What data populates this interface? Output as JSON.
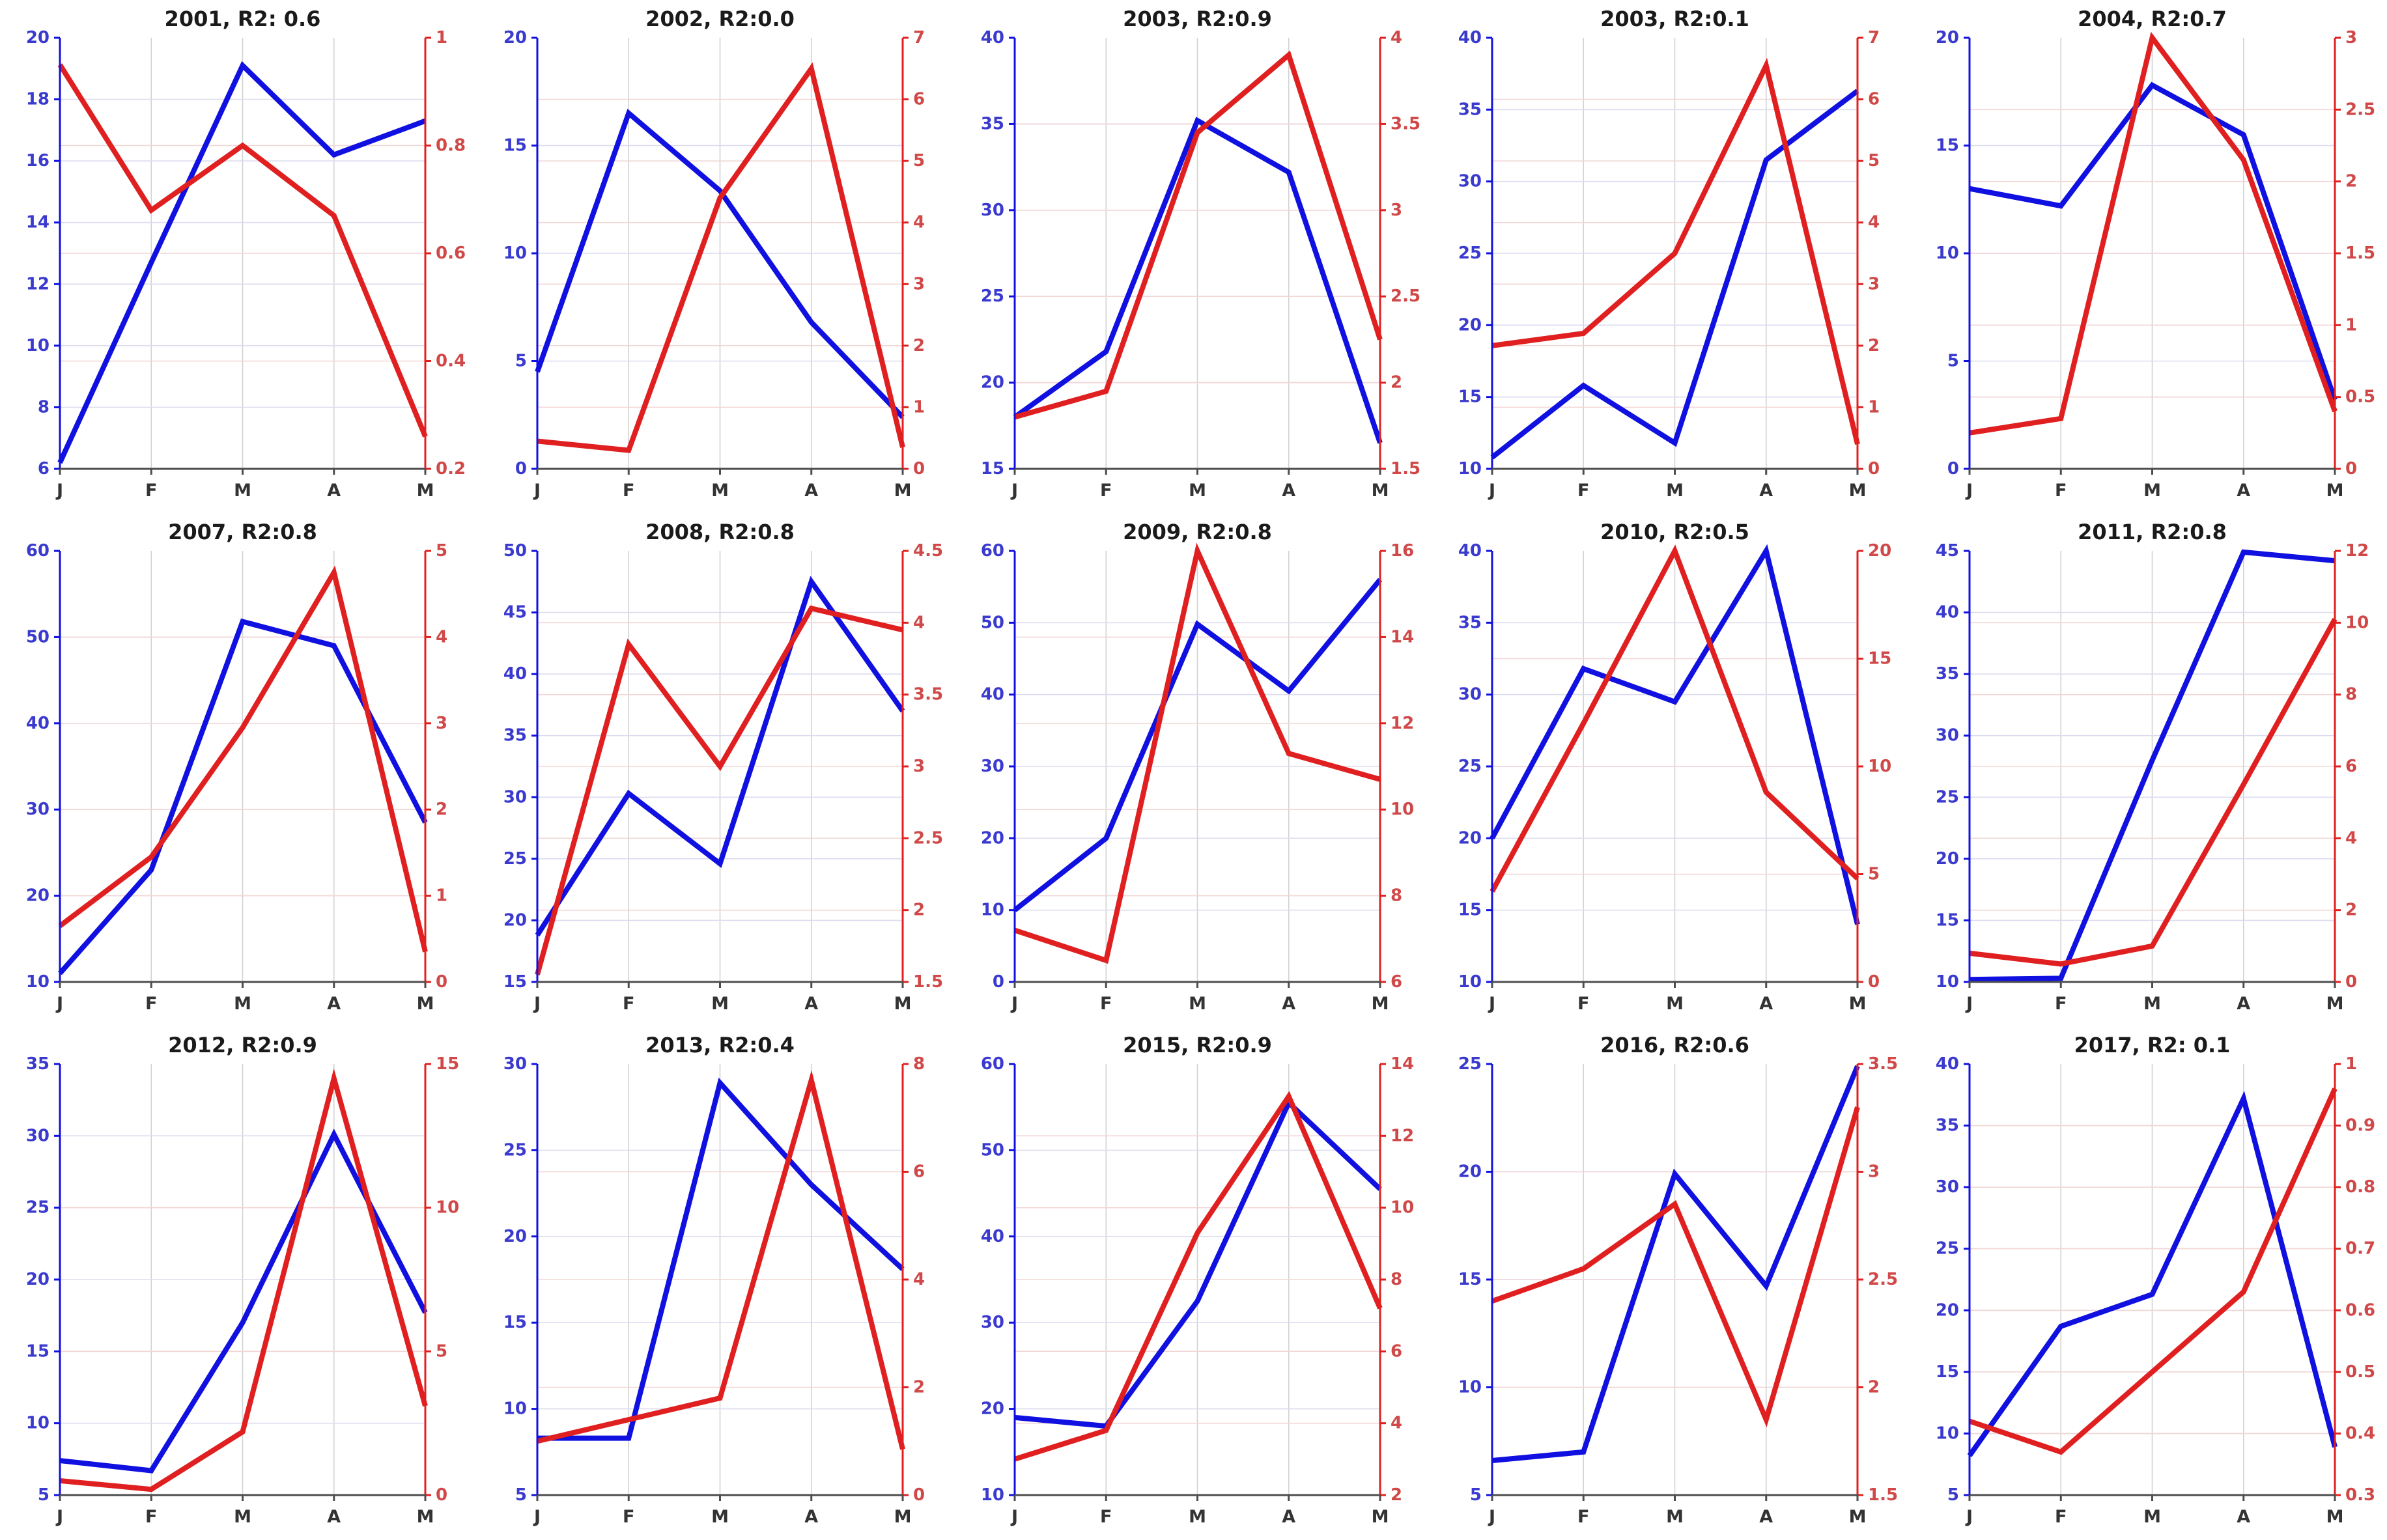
{
  "figure": {
    "background": "#ffffff",
    "rows": 3,
    "cols": 5,
    "x_categories": [
      "J",
      "F",
      "M",
      "A",
      "M"
    ]
  },
  "colors": {
    "blue_line": "#1010e0",
    "red_line": "#e02020",
    "left_tick_label": "#3a3ace",
    "right_tick_label": "#d04848",
    "title": "#1a1a1a",
    "bottom_spine": "#4d4d4d",
    "vertical_grid": "#d2d2d2",
    "left_grid": "#dcdcf0",
    "right_grid": "#f2d6d6"
  },
  "chart_data": [
    {
      "type": "line",
      "title": "2001, R2: 0.6",
      "x": [
        "J",
        "F",
        "M",
        "A",
        "M"
      ],
      "left_ylim": [
        6,
        20
      ],
      "left_ticks": [
        6,
        8,
        10,
        12,
        14,
        16,
        18,
        20
      ],
      "right_ylim": [
        0.2,
        1
      ],
      "right_ticks": [
        0.2,
        0.4,
        0.6,
        0.8,
        1
      ],
      "series": [
        {
          "name": "blue-left",
          "axis": "left",
          "values": [
            6.2,
            12.7,
            19.1,
            16.2,
            17.3
          ]
        },
        {
          "name": "red-right",
          "axis": "right",
          "values": [
            0.95,
            0.68,
            0.8,
            0.67,
            0.26
          ]
        }
      ]
    },
    {
      "type": "line",
      "title": "2002, R2:0.0",
      "x": [
        "J",
        "F",
        "M",
        "A",
        "M"
      ],
      "left_ylim": [
        0,
        20
      ],
      "left_ticks": [
        0,
        5,
        10,
        15,
        20
      ],
      "right_ylim": [
        0,
        7
      ],
      "right_ticks": [
        0,
        1,
        2,
        3,
        4,
        5,
        6,
        7
      ],
      "series": [
        {
          "name": "blue-left",
          "axis": "left",
          "values": [
            4.5,
            16.5,
            12.9,
            6.8,
            2.4
          ]
        },
        {
          "name": "red-right",
          "axis": "right",
          "values": [
            0.45,
            0.3,
            4.4,
            6.5,
            0.35
          ]
        }
      ]
    },
    {
      "type": "line",
      "title": "2003, R2:0.9",
      "x": [
        "J",
        "F",
        "M",
        "A",
        "M"
      ],
      "left_ylim": [
        15,
        40
      ],
      "left_ticks": [
        15,
        20,
        25,
        30,
        35,
        40
      ],
      "right_ylim": [
        1.5,
        4
      ],
      "right_ticks": [
        1.5,
        2,
        2.5,
        3,
        3.5,
        4
      ],
      "series": [
        {
          "name": "blue-left",
          "axis": "left",
          "values": [
            18,
            21.8,
            35.2,
            32.2,
            16.5
          ]
        },
        {
          "name": "red-right",
          "axis": "right",
          "values": [
            1.8,
            1.95,
            3.45,
            3.9,
            2.25
          ]
        }
      ]
    },
    {
      "type": "line",
      "title": "2003, R2:0.1",
      "x": [
        "J",
        "F",
        "M",
        "A",
        "M"
      ],
      "left_ylim": [
        10,
        40
      ],
      "left_ticks": [
        10,
        15,
        20,
        25,
        30,
        35,
        40
      ],
      "right_ylim": [
        0,
        7
      ],
      "right_ticks": [
        0,
        1,
        2,
        3,
        4,
        5,
        6,
        7
      ],
      "series": [
        {
          "name": "blue-left",
          "axis": "left",
          "values": [
            10.8,
            15.8,
            11.8,
            31.5,
            36.3
          ]
        },
        {
          "name": "red-right",
          "axis": "right",
          "values": [
            2.0,
            2.2,
            3.5,
            6.55,
            0.4
          ]
        }
      ]
    },
    {
      "type": "line",
      "title": "2004, R2:0.7",
      "x": [
        "J",
        "F",
        "M",
        "A",
        "M"
      ],
      "left_ylim": [
        0,
        20
      ],
      "left_ticks": [
        0,
        5,
        10,
        15,
        20
      ],
      "right_ylim": [
        0,
        3
      ],
      "right_ticks": [
        0,
        0.5,
        1,
        1.5,
        2,
        2.5,
        3
      ],
      "series": [
        {
          "name": "blue-left",
          "axis": "left",
          "values": [
            13,
            12.2,
            17.8,
            15.5,
            3.2
          ]
        },
        {
          "name": "red-right",
          "axis": "right",
          "values": [
            0.25,
            0.35,
            3.0,
            2.15,
            0.4
          ]
        }
      ]
    },
    {
      "type": "line",
      "title": "2007, R2:0.8",
      "x": [
        "J",
        "F",
        "M",
        "A",
        "M"
      ],
      "left_ylim": [
        10,
        60
      ],
      "left_ticks": [
        10,
        20,
        30,
        40,
        50,
        60
      ],
      "right_ylim": [
        0,
        5
      ],
      "right_ticks": [
        0,
        1,
        2,
        3,
        4,
        5
      ],
      "series": [
        {
          "name": "blue-left",
          "axis": "left",
          "values": [
            11,
            23,
            51.8,
            49,
            28.5
          ]
        },
        {
          "name": "red-right",
          "axis": "right",
          "values": [
            0.65,
            1.45,
            2.95,
            4.75,
            0.35
          ]
        }
      ]
    },
    {
      "type": "line",
      "title": "2008, R2:0.8",
      "x": [
        "J",
        "F",
        "M",
        "A",
        "M"
      ],
      "left_ylim": [
        15,
        50
      ],
      "left_ticks": [
        15,
        20,
        25,
        30,
        35,
        40,
        45,
        50
      ],
      "right_ylim": [
        1.5,
        4.5
      ],
      "right_ticks": [
        1.5,
        2,
        2.5,
        3,
        3.5,
        4,
        4.5
      ],
      "series": [
        {
          "name": "blue-left",
          "axis": "left",
          "values": [
            18.8,
            30.3,
            24.6,
            47.5,
            37
          ]
        },
        {
          "name": "red-right",
          "axis": "right",
          "values": [
            1.55,
            3.85,
            3.0,
            4.1,
            3.95
          ]
        }
      ]
    },
    {
      "type": "line",
      "title": "2009, R2:0.8",
      "x": [
        "J",
        "F",
        "M",
        "A",
        "M"
      ],
      "left_ylim": [
        0,
        60
      ],
      "left_ticks": [
        0,
        10,
        20,
        30,
        40,
        50,
        60
      ],
      "right_ylim": [
        6,
        16
      ],
      "right_ticks": [
        6,
        8,
        10,
        12,
        14,
        16
      ],
      "series": [
        {
          "name": "blue-left",
          "axis": "left",
          "values": [
            10,
            20,
            49.8,
            40.5,
            56
          ]
        },
        {
          "name": "red-right",
          "axis": "right",
          "values": [
            7.2,
            6.5,
            16,
            11.3,
            10.7
          ]
        }
      ]
    },
    {
      "type": "line",
      "title": "2010, R2:0.5",
      "x": [
        "J",
        "F",
        "M",
        "A",
        "M"
      ],
      "left_ylim": [
        10,
        40
      ],
      "left_ticks": [
        10,
        15,
        20,
        25,
        30,
        35,
        40
      ],
      "right_ylim": [
        0,
        20
      ],
      "right_ticks": [
        0,
        5,
        10,
        15,
        20
      ],
      "series": [
        {
          "name": "blue-left",
          "axis": "left",
          "values": [
            20,
            31.8,
            29.5,
            40,
            14
          ]
        },
        {
          "name": "red-right",
          "axis": "right",
          "values": [
            4.2,
            12,
            20,
            8.8,
            4.8
          ]
        }
      ]
    },
    {
      "type": "line",
      "title": "2011, R2:0.8",
      "x": [
        "J",
        "F",
        "M",
        "A",
        "M"
      ],
      "left_ylim": [
        10,
        45
      ],
      "left_ticks": [
        10,
        15,
        20,
        25,
        30,
        35,
        40,
        45
      ],
      "right_ylim": [
        0,
        12
      ],
      "right_ticks": [
        0,
        2,
        4,
        6,
        8,
        10,
        12
      ],
      "series": [
        {
          "name": "blue-left",
          "axis": "left",
          "values": [
            10.2,
            10.3,
            28,
            44.9,
            44.2
          ]
        },
        {
          "name": "red-right",
          "axis": "right",
          "values": [
            0.8,
            0.5,
            1.0,
            5.5,
            10.1
          ]
        }
      ]
    },
    {
      "type": "line",
      "title": "2012, R2:0.9",
      "x": [
        "J",
        "F",
        "M",
        "A",
        "M"
      ],
      "left_ylim": [
        5,
        35
      ],
      "left_ticks": [
        5,
        10,
        15,
        20,
        25,
        30,
        35
      ],
      "right_ylim": [
        0,
        15
      ],
      "right_ticks": [
        0,
        5,
        10,
        15
      ],
      "series": [
        {
          "name": "blue-left",
          "axis": "left",
          "values": [
            7.4,
            6.7,
            17,
            30.1,
            17.7
          ]
        },
        {
          "name": "red-right",
          "axis": "right",
          "values": [
            0.5,
            0.2,
            2.2,
            14.5,
            3.1
          ]
        }
      ]
    },
    {
      "type": "line",
      "title": "2013, R2:0.4",
      "x": [
        "J",
        "F",
        "M",
        "A",
        "M"
      ],
      "left_ylim": [
        5,
        30
      ],
      "left_ticks": [
        5,
        10,
        15,
        20,
        25,
        30
      ],
      "right_ylim": [
        0,
        8
      ],
      "right_ticks": [
        0,
        2,
        4,
        6,
        8
      ],
      "series": [
        {
          "name": "blue-left",
          "axis": "left",
          "values": [
            8.3,
            8.3,
            28.9,
            23,
            18.1
          ]
        },
        {
          "name": "red-right",
          "axis": "right",
          "values": [
            1.0,
            1.4,
            1.8,
            7.7,
            0.85
          ]
        }
      ]
    },
    {
      "type": "line",
      "title": "2015, R2:0.9",
      "x": [
        "J",
        "F",
        "M",
        "A",
        "M"
      ],
      "left_ylim": [
        10,
        60
      ],
      "left_ticks": [
        10,
        20,
        30,
        40,
        50,
        60
      ],
      "right_ylim": [
        2,
        14
      ],
      "right_ticks": [
        2,
        4,
        6,
        8,
        10,
        12,
        14
      ],
      "series": [
        {
          "name": "blue-left",
          "axis": "left",
          "values": [
            19,
            18,
            32.5,
            55.5,
            45.5
          ]
        },
        {
          "name": "red-right",
          "axis": "right",
          "values": [
            3.0,
            3.8,
            9.3,
            13.1,
            7.2
          ]
        }
      ]
    },
    {
      "type": "line",
      "title": "2016, R2:0.6",
      "x": [
        "J",
        "F",
        "M",
        "A",
        "M"
      ],
      "left_ylim": [
        5,
        25
      ],
      "left_ticks": [
        5,
        10,
        15,
        20,
        25
      ],
      "right_ylim": [
        1.5,
        3.5
      ],
      "right_ticks": [
        1.5,
        2,
        2.5,
        3,
        3.5
      ],
      "series": [
        {
          "name": "blue-left",
          "axis": "left",
          "values": [
            6.6,
            7.0,
            19.9,
            14.7,
            24.9
          ]
        },
        {
          "name": "red-right",
          "axis": "right",
          "values": [
            2.4,
            2.55,
            2.85,
            1.85,
            3.3
          ]
        }
      ]
    },
    {
      "type": "line",
      "title": "2017, R2: 0.1",
      "x": [
        "J",
        "F",
        "M",
        "A",
        "M"
      ],
      "left_ylim": [
        5,
        40
      ],
      "left_ticks": [
        5,
        10,
        15,
        20,
        25,
        30,
        35,
        40
      ],
      "right_ylim": [
        0.3,
        1
      ],
      "right_ticks": [
        0.3,
        0.4,
        0.5,
        0.6,
        0.7,
        0.8,
        0.9,
        1
      ],
      "series": [
        {
          "name": "blue-left",
          "axis": "left",
          "values": [
            8.2,
            18.7,
            21.3,
            37.2,
            8.9
          ]
        },
        {
          "name": "red-right",
          "axis": "right",
          "values": [
            0.42,
            0.37,
            0.5,
            0.63,
            0.96
          ]
        }
      ]
    }
  ]
}
